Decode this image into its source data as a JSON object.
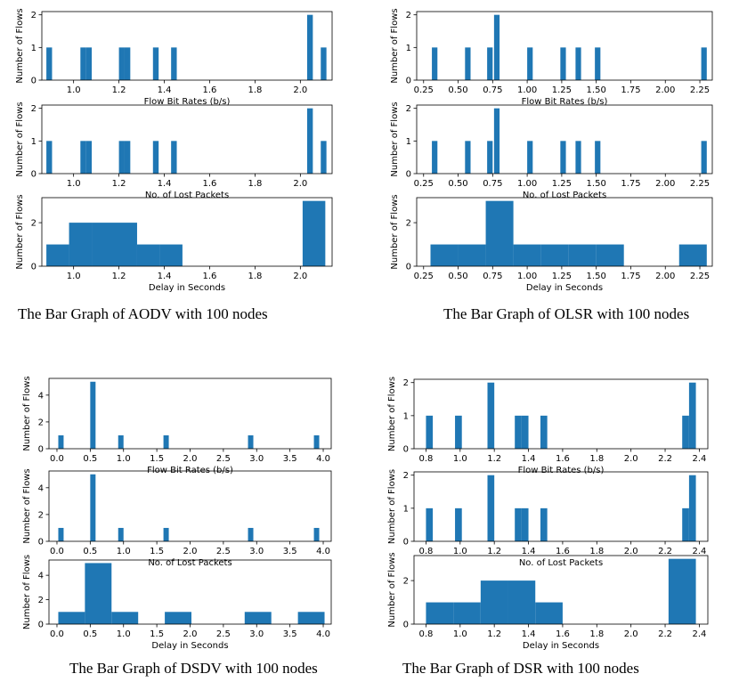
{
  "captions": {
    "aodv": "The Bar Graph of AODV with 100 nodes",
    "olsr": "The Bar Graph of OLSR with 100 nodes",
    "dsdv": "The Bar Graph of DSDV with 100 nodes",
    "dsr": "The Bar Graph of DSR with 100 nodes"
  },
  "bar_color": "#1f77b4",
  "chart_data": [
    {
      "id": "aodv-bitrate",
      "type": "bar",
      "xlabel": "Flow Bit Rates (b/s)",
      "ylabel": "Number of Flows",
      "xticks": [
        1.0,
        1.2,
        1.4,
        1.6,
        1.8,
        2.0
      ],
      "xtick_labels": [
        "1.0",
        "1.2",
        "1.4",
        "1.6",
        "1.8",
        "2.0"
      ],
      "xlim": [
        0.86,
        2.14
      ],
      "yticks": [
        0,
        1,
        2
      ],
      "ytick_labels": [
        "0",
        "1",
        "2"
      ],
      "ylim": [
        0,
        2.1
      ],
      "bins": [
        {
          "x0": 0.88,
          "x1": 0.905,
          "v": 1
        },
        {
          "x0": 1.03,
          "x1": 1.055,
          "v": 1
        },
        {
          "x0": 1.055,
          "x1": 1.08,
          "v": 1
        },
        {
          "x0": 1.2,
          "x1": 1.225,
          "v": 1
        },
        {
          "x0": 1.225,
          "x1": 1.25,
          "v": 1
        },
        {
          "x0": 1.35,
          "x1": 1.375,
          "v": 1
        },
        {
          "x0": 1.43,
          "x1": 1.455,
          "v": 1
        },
        {
          "x0": 2.03,
          "x1": 2.055,
          "v": 2
        },
        {
          "x0": 2.09,
          "x1": 2.115,
          "v": 1
        }
      ]
    },
    {
      "id": "aodv-lost",
      "type": "bar",
      "xlabel": "No. of Lost Packets",
      "ylabel": "Number of Flows",
      "xticks": [
        1.0,
        1.2,
        1.4,
        1.6,
        1.8,
        2.0
      ],
      "xtick_labels": [
        "1.0",
        "1.2",
        "1.4",
        "1.6",
        "1.8",
        "2.0"
      ],
      "xlim": [
        0.86,
        2.14
      ],
      "yticks": [
        0,
        1,
        2
      ],
      "ytick_labels": [
        "0",
        "1",
        "2"
      ],
      "ylim": [
        0,
        2.1
      ],
      "bins": [
        {
          "x0": 0.88,
          "x1": 0.905,
          "v": 1
        },
        {
          "x0": 1.03,
          "x1": 1.055,
          "v": 1
        },
        {
          "x0": 1.055,
          "x1": 1.08,
          "v": 1
        },
        {
          "x0": 1.2,
          "x1": 1.225,
          "v": 1
        },
        {
          "x0": 1.225,
          "x1": 1.25,
          "v": 1
        },
        {
          "x0": 1.35,
          "x1": 1.375,
          "v": 1
        },
        {
          "x0": 1.43,
          "x1": 1.455,
          "v": 1
        },
        {
          "x0": 2.03,
          "x1": 2.055,
          "v": 2
        },
        {
          "x0": 2.09,
          "x1": 2.115,
          "v": 1
        }
      ]
    },
    {
      "id": "aodv-delay",
      "type": "bar",
      "xlabel": "Delay in Seconds",
      "ylabel": "Number of Flows",
      "xticks": [
        1.0,
        1.2,
        1.4,
        1.6,
        1.8,
        2.0
      ],
      "xtick_labels": [
        "1.0",
        "1.2",
        "1.4",
        "1.6",
        "1.8",
        "2.0"
      ],
      "xlim": [
        0.86,
        2.14
      ],
      "yticks": [
        0,
        2
      ],
      "ytick_labels": [
        "0",
        "2"
      ],
      "ylim": [
        0,
        3.15
      ],
      "bins": [
        {
          "x0": 0.88,
          "x1": 0.98,
          "v": 1
        },
        {
          "x0": 0.98,
          "x1": 1.08,
          "v": 2
        },
        {
          "x0": 1.08,
          "x1": 1.18,
          "v": 2
        },
        {
          "x0": 1.18,
          "x1": 1.28,
          "v": 2
        },
        {
          "x0": 1.28,
          "x1": 1.38,
          "v": 1
        },
        {
          "x0": 1.38,
          "x1": 1.48,
          "v": 1
        },
        {
          "x0": 2.01,
          "x1": 2.11,
          "v": 3
        }
      ]
    },
    {
      "id": "olsr-bitrate",
      "type": "bar",
      "xlabel": "Flow Bit Rates (b/s)",
      "ylabel": "Number of Flows",
      "xticks": [
        0.25,
        0.5,
        0.75,
        1.0,
        1.25,
        1.5,
        1.75,
        2.0,
        2.25
      ],
      "xtick_labels": [
        "0.25",
        "0.50",
        "0.75",
        "1.00",
        "1.25",
        "1.50",
        "1.75",
        "2.00",
        "2.25"
      ],
      "xlim": [
        0.2,
        2.34
      ],
      "yticks": [
        0,
        1,
        2
      ],
      "ytick_labels": [
        "0",
        "1",
        "2"
      ],
      "ylim": [
        0,
        2.1
      ],
      "bins": [
        {
          "x0": 0.31,
          "x1": 0.35,
          "v": 1
        },
        {
          "x0": 0.55,
          "x1": 0.59,
          "v": 1
        },
        {
          "x0": 0.71,
          "x1": 0.75,
          "v": 1
        },
        {
          "x0": 0.76,
          "x1": 0.8,
          "v": 2
        },
        {
          "x0": 1.0,
          "x1": 1.04,
          "v": 1
        },
        {
          "x0": 1.24,
          "x1": 1.28,
          "v": 1
        },
        {
          "x0": 1.35,
          "x1": 1.39,
          "v": 1
        },
        {
          "x0": 1.49,
          "x1": 1.53,
          "v": 1
        },
        {
          "x0": 2.26,
          "x1": 2.3,
          "v": 1
        }
      ]
    },
    {
      "id": "olsr-lost",
      "type": "bar",
      "xlabel": "No. of Lost Packets",
      "ylabel": "Number of Flows",
      "xticks": [
        0.25,
        0.5,
        0.75,
        1.0,
        1.25,
        1.5,
        1.75,
        2.0,
        2.25
      ],
      "xtick_labels": [
        "0.25",
        "0.50",
        "0.75",
        "1.00",
        "1.25",
        "1.50",
        "1.75",
        "2.00",
        "2.25"
      ],
      "xlim": [
        0.2,
        2.34
      ],
      "yticks": [
        0,
        1,
        2
      ],
      "ytick_labels": [
        "0",
        "1",
        "2"
      ],
      "ylim": [
        0,
        2.1
      ],
      "bins": [
        {
          "x0": 0.31,
          "x1": 0.35,
          "v": 1
        },
        {
          "x0": 0.55,
          "x1": 0.59,
          "v": 1
        },
        {
          "x0": 0.71,
          "x1": 0.75,
          "v": 1
        },
        {
          "x0": 0.76,
          "x1": 0.8,
          "v": 2
        },
        {
          "x0": 1.0,
          "x1": 1.04,
          "v": 1
        },
        {
          "x0": 1.24,
          "x1": 1.28,
          "v": 1
        },
        {
          "x0": 1.35,
          "x1": 1.39,
          "v": 1
        },
        {
          "x0": 1.49,
          "x1": 1.53,
          "v": 1
        },
        {
          "x0": 2.26,
          "x1": 2.3,
          "v": 1
        }
      ]
    },
    {
      "id": "olsr-delay",
      "type": "bar",
      "xlabel": "Delay in Seconds",
      "ylabel": "Number of Flows",
      "xticks": [
        0.25,
        0.5,
        0.75,
        1.0,
        1.25,
        1.5,
        1.75,
        2.0,
        2.25
      ],
      "xtick_labels": [
        "0.25",
        "0.50",
        "0.75",
        "1.00",
        "1.25",
        "1.50",
        "1.75",
        "2.00",
        "2.25"
      ],
      "xlim": [
        0.2,
        2.34
      ],
      "yticks": [
        0,
        2
      ],
      "ytick_labels": [
        "0",
        "2"
      ],
      "ylim": [
        0,
        3.15
      ],
      "bins": [
        {
          "x0": 0.3,
          "x1": 0.5,
          "v": 1
        },
        {
          "x0": 0.5,
          "x1": 0.7,
          "v": 1
        },
        {
          "x0": 0.7,
          "x1": 0.9,
          "v": 3
        },
        {
          "x0": 0.9,
          "x1": 1.1,
          "v": 1
        },
        {
          "x0": 1.1,
          "x1": 1.3,
          "v": 1
        },
        {
          "x0": 1.3,
          "x1": 1.5,
          "v": 1
        },
        {
          "x0": 1.5,
          "x1": 1.7,
          "v": 1
        },
        {
          "x0": 2.1,
          "x1": 2.3,
          "v": 1
        }
      ]
    },
    {
      "id": "dsdv-bitrate",
      "type": "bar",
      "xlabel": "Flow Bit Rates (b/s)",
      "ylabel": "Number of Flows",
      "xticks": [
        0,
        0.5,
        1.0,
        1.5,
        2.0,
        2.5,
        3.0,
        3.5,
        4.0
      ],
      "xtick_labels": [
        "0.0",
        "0.5",
        "1.0",
        "1.5",
        "2.0",
        "2.5",
        "3.0",
        "3.5",
        "4.0"
      ],
      "xlim": [
        -0.12,
        4.12
      ],
      "yticks": [
        0,
        2,
        4
      ],
      "ytick_labels": [
        "0",
        "2",
        "4"
      ],
      "ylim": [
        0,
        5.25
      ],
      "bins": [
        {
          "x0": 0.02,
          "x1": 0.1,
          "v": 1
        },
        {
          "x0": 0.5,
          "x1": 0.58,
          "v": 5
        },
        {
          "x0": 0.92,
          "x1": 1.0,
          "v": 1
        },
        {
          "x0": 1.6,
          "x1": 1.68,
          "v": 1
        },
        {
          "x0": 2.87,
          "x1": 2.95,
          "v": 1
        },
        {
          "x0": 3.86,
          "x1": 3.94,
          "v": 1
        }
      ]
    },
    {
      "id": "dsdv-lost",
      "type": "bar",
      "xlabel": "No. of Lost Packets",
      "ylabel": "Number of Flows",
      "xticks": [
        0,
        0.5,
        1.0,
        1.5,
        2.0,
        2.5,
        3.0,
        3.5,
        4.0
      ],
      "xtick_labels": [
        "0.0",
        "0.5",
        "1.0",
        "1.5",
        "2.0",
        "2.5",
        "3.0",
        "3.5",
        "4.0"
      ],
      "xlim": [
        -0.12,
        4.12
      ],
      "yticks": [
        0,
        2,
        4
      ],
      "ytick_labels": [
        "0",
        "2",
        "4"
      ],
      "ylim": [
        0,
        5.25
      ],
      "bins": [
        {
          "x0": 0.02,
          "x1": 0.1,
          "v": 1
        },
        {
          "x0": 0.5,
          "x1": 0.58,
          "v": 5
        },
        {
          "x0": 0.92,
          "x1": 1.0,
          "v": 1
        },
        {
          "x0": 1.6,
          "x1": 1.68,
          "v": 1
        },
        {
          "x0": 2.87,
          "x1": 2.95,
          "v": 1
        },
        {
          "x0": 3.86,
          "x1": 3.94,
          "v": 1
        }
      ]
    },
    {
      "id": "dsdv-delay",
      "type": "bar",
      "xlabel": "Delay in Seconds",
      "ylabel": "Number of Flows",
      "xticks": [
        0,
        0.5,
        1.0,
        1.5,
        2.0,
        2.5,
        3.0,
        3.5,
        4.0
      ],
      "xtick_labels": [
        "0.0",
        "0.5",
        "1.0",
        "1.5",
        "2.0",
        "2.5",
        "3.0",
        "3.5",
        "4.0"
      ],
      "xlim": [
        -0.12,
        4.12
      ],
      "yticks": [
        0,
        2,
        4
      ],
      "ytick_labels": [
        "0",
        "2",
        "4"
      ],
      "ylim": [
        0,
        5.25
      ],
      "bins": [
        {
          "x0": 0.02,
          "x1": 0.42,
          "v": 1
        },
        {
          "x0": 0.42,
          "x1": 0.82,
          "v": 5
        },
        {
          "x0": 0.82,
          "x1": 1.22,
          "v": 1
        },
        {
          "x0": 1.62,
          "x1": 2.02,
          "v": 1
        },
        {
          "x0": 2.82,
          "x1": 3.22,
          "v": 1
        },
        {
          "x0": 3.62,
          "x1": 4.02,
          "v": 1
        }
      ]
    },
    {
      "id": "dsr-bitrate",
      "type": "bar",
      "xlabel": "Flow Bit Rates (b/s)",
      "ylabel": "Number of Flows",
      "xticks": [
        0.8,
        1.0,
        1.2,
        1.4,
        1.6,
        1.8,
        2.0,
        2.2,
        2.4
      ],
      "xtick_labels": [
        "0.8",
        "1.0",
        "1.2",
        "1.4",
        "1.6",
        "1.8",
        "2.0",
        "2.2",
        "2.4"
      ],
      "xlim": [
        0.73,
        2.45
      ],
      "yticks": [
        0,
        1,
        2
      ],
      "ytick_labels": [
        "0",
        "1",
        "2"
      ],
      "ylim": [
        0,
        2.1
      ],
      "bins": [
        {
          "x0": 0.8,
          "x1": 0.84,
          "v": 1
        },
        {
          "x0": 0.97,
          "x1": 1.01,
          "v": 1
        },
        {
          "x0": 1.16,
          "x1": 1.2,
          "v": 2
        },
        {
          "x0": 1.32,
          "x1": 1.36,
          "v": 1
        },
        {
          "x0": 1.36,
          "x1": 1.4,
          "v": 1
        },
        {
          "x0": 1.47,
          "x1": 1.51,
          "v": 1
        },
        {
          "x0": 2.3,
          "x1": 2.34,
          "v": 1
        },
        {
          "x0": 2.34,
          "x1": 2.38,
          "v": 2
        }
      ]
    },
    {
      "id": "dsr-lost",
      "type": "bar",
      "xlabel": "No. of Lost Packets",
      "ylabel": "Number of Flows",
      "xticks": [
        0.8,
        1.0,
        1.2,
        1.4,
        1.6,
        1.8,
        2.0,
        2.2,
        2.4
      ],
      "xtick_labels": [
        "0.8",
        "1.0",
        "1.2",
        "1.4",
        "1.6",
        "1.8",
        "2.0",
        "2.2",
        "2.4"
      ],
      "xlim": [
        0.73,
        2.45
      ],
      "yticks": [
        0,
        1,
        2
      ],
      "ytick_labels": [
        "0",
        "1",
        "2"
      ],
      "ylim": [
        0,
        2.1
      ],
      "bins": [
        {
          "x0": 0.8,
          "x1": 0.84,
          "v": 1
        },
        {
          "x0": 0.97,
          "x1": 1.01,
          "v": 1
        },
        {
          "x0": 1.16,
          "x1": 1.2,
          "v": 2
        },
        {
          "x0": 1.32,
          "x1": 1.36,
          "v": 1
        },
        {
          "x0": 1.36,
          "x1": 1.4,
          "v": 1
        },
        {
          "x0": 1.47,
          "x1": 1.51,
          "v": 1
        },
        {
          "x0": 2.3,
          "x1": 2.34,
          "v": 1
        },
        {
          "x0": 2.34,
          "x1": 2.38,
          "v": 2
        }
      ]
    },
    {
      "id": "dsr-delay",
      "type": "bar",
      "xlabel": "Delay in Seconds",
      "ylabel": "Number of Flows",
      "xticks": [
        0.8,
        1.0,
        1.2,
        1.4,
        1.6,
        1.8,
        2.0,
        2.2,
        2.4
      ],
      "xtick_labels": [
        "0.8",
        "1.0",
        "1.2",
        "1.4",
        "1.6",
        "1.8",
        "2.0",
        "2.2",
        "2.4"
      ],
      "xlim": [
        0.73,
        2.45
      ],
      "yticks": [
        0,
        2
      ],
      "ytick_labels": [
        "0",
        "2"
      ],
      "ylim": [
        0,
        3.15
      ],
      "bins": [
        {
          "x0": 0.8,
          "x1": 0.96,
          "v": 1
        },
        {
          "x0": 0.96,
          "x1": 1.12,
          "v": 1
        },
        {
          "x0": 1.12,
          "x1": 1.28,
          "v": 2
        },
        {
          "x0": 1.28,
          "x1": 1.44,
          "v": 2
        },
        {
          "x0": 1.44,
          "x1": 1.6,
          "v": 1
        },
        {
          "x0": 2.22,
          "x1": 2.38,
          "v": 3
        }
      ]
    }
  ]
}
